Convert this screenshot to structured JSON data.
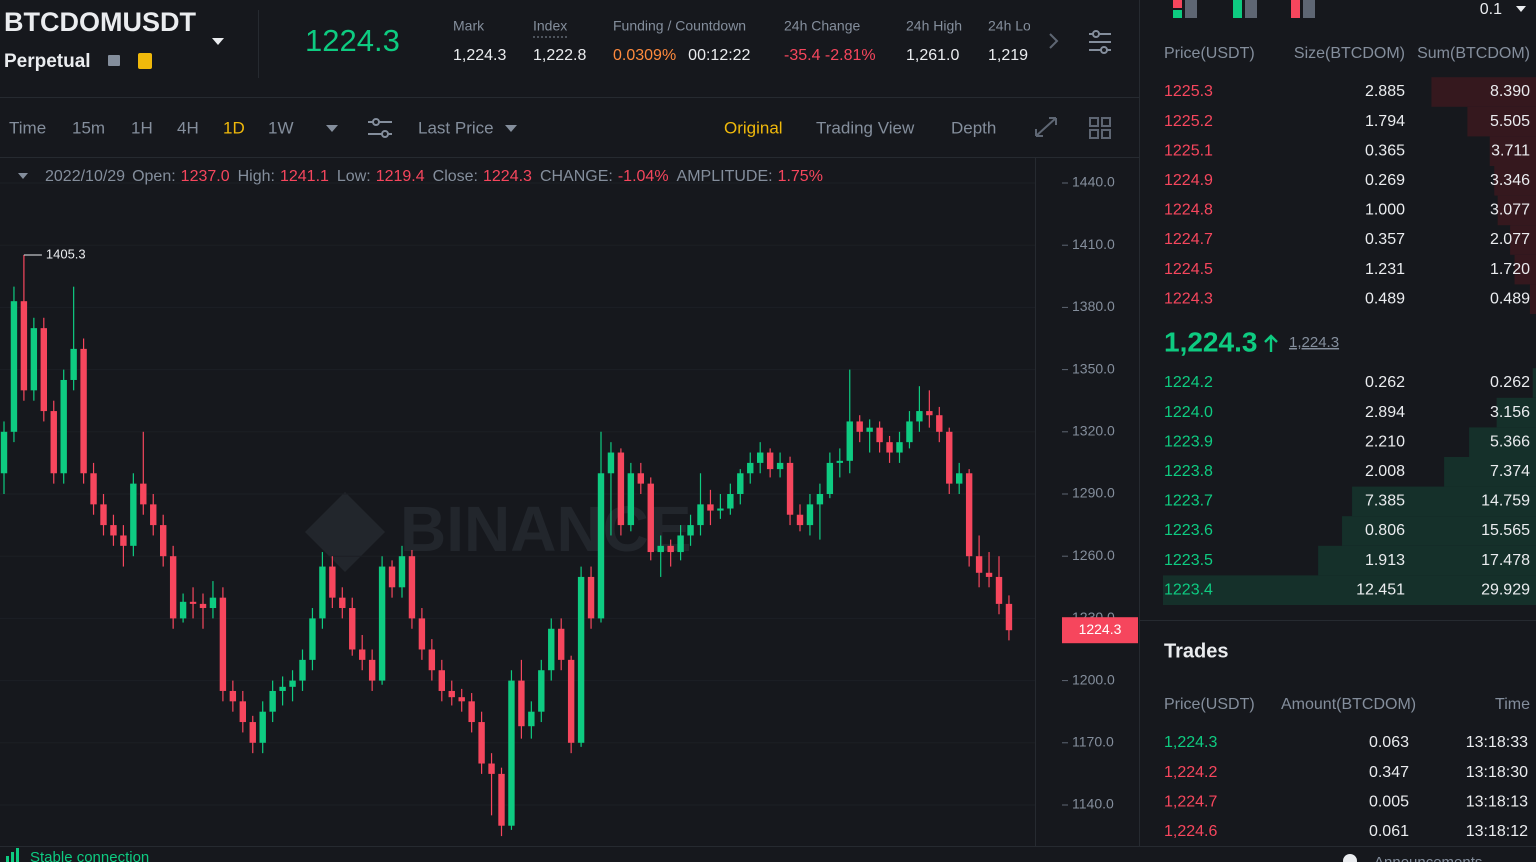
{
  "header": {
    "symbol": "BTCDOMUSDT",
    "contract": "Perpetual",
    "last_price": "1224.3",
    "stats": [
      {
        "label": "Mark",
        "value": "1,224.3"
      },
      {
        "label": "Index",
        "value": "1,222.8"
      },
      {
        "label": "Funding / Countdown",
        "value": "0.0309%",
        "value2": "00:12:22"
      },
      {
        "label": "24h Change",
        "value": "-35.4 -2.81%"
      },
      {
        "label": "24h High",
        "value": "1,261.0"
      },
      {
        "label": "24h Lo",
        "value": "1,219"
      }
    ]
  },
  "toolbar": {
    "intervals": [
      "Time",
      "15m",
      "1H",
      "4H",
      "1D",
      "1W"
    ],
    "active_interval": 4,
    "price_type": "Last Price",
    "views": [
      "Original",
      "Trading View",
      "Depth"
    ],
    "active_view": 0
  },
  "chart_data": {
    "type": "candlestick",
    "info": {
      "date": "2022/10/29",
      "fields": [
        {
          "label": "Open:",
          "value": "1237.0"
        },
        {
          "label": "High:",
          "value": "1241.1"
        },
        {
          "label": "Low:",
          "value": "1219.4"
        },
        {
          "label": "Close:",
          "value": "1224.3"
        },
        {
          "label": "CHANGE:",
          "value": "-1.04%"
        },
        {
          "label": "AMPLITUDE:",
          "value": "1.75%"
        }
      ]
    },
    "up_color": "#0ecb81",
    "down_color": "#f6465d",
    "grid": true,
    "ylim": [
      1120.7,
      1451.1
    ],
    "yticks": [
      {
        "value": 1140,
        "label": "1140.0"
      },
      {
        "value": 1170,
        "label": "1170.0"
      },
      {
        "value": 1200,
        "label": "1200.0"
      },
      {
        "value": 1230,
        "label": "1230.0"
      },
      {
        "value": 1260,
        "label": "1260.0"
      },
      {
        "value": 1290,
        "label": "1290.0"
      },
      {
        "value": 1320,
        "label": "1320.0"
      },
      {
        "value": 1350,
        "label": "1350.0"
      },
      {
        "value": 1380,
        "label": "1380.0"
      },
      {
        "value": 1410,
        "label": "1410.0"
      },
      {
        "value": 1440,
        "label": "1440.0"
      }
    ],
    "high_label": "1405.3",
    "last_price_label": "1224.3",
    "watermark": "BINANCE",
    "candles": [
      [
        1300,
        1325,
        1290,
        1320
      ],
      [
        1320,
        1390,
        1315,
        1383
      ],
      [
        1383,
        1405.3,
        1335,
        1340
      ],
      [
        1340,
        1375,
        1335,
        1370
      ],
      [
        1370,
        1375,
        1325,
        1330
      ],
      [
        1330,
        1335,
        1295,
        1300
      ],
      [
        1300,
        1350,
        1295,
        1345
      ],
      [
        1345,
        1390,
        1340,
        1360
      ],
      [
        1360,
        1365,
        1295,
        1300
      ],
      [
        1300,
        1305,
        1280,
        1285
      ],
      [
        1285,
        1290,
        1270,
        1275
      ],
      [
        1275,
        1280,
        1265,
        1270
      ],
      [
        1270,
        1275,
        1255,
        1265
      ],
      [
        1265,
        1300,
        1260,
        1295
      ],
      [
        1295,
        1320,
        1280,
        1285
      ],
      [
        1285,
        1290,
        1270,
        1275
      ],
      [
        1275,
        1280,
        1255,
        1260
      ],
      [
        1260,
        1265,
        1225,
        1230
      ],
      [
        1230,
        1242,
        1228,
        1238
      ],
      [
        1238,
        1245,
        1230,
        1237
      ],
      [
        1237,
        1242,
        1225,
        1235
      ],
      [
        1235,
        1248,
        1230,
        1240
      ],
      [
        1240,
        1245,
        1190,
        1195
      ],
      [
        1195,
        1200,
        1185,
        1190
      ],
      [
        1190,
        1195,
        1175,
        1180
      ],
      [
        1180,
        1183,
        1165,
        1170
      ],
      [
        1170,
        1190,
        1165,
        1185
      ],
      [
        1185,
        1200,
        1180,
        1195
      ],
      [
        1195,
        1202,
        1188,
        1197
      ],
      [
        1197,
        1205,
        1190,
        1200
      ],
      [
        1200,
        1215,
        1195,
        1210
      ],
      [
        1210,
        1235,
        1205,
        1230
      ],
      [
        1230,
        1262,
        1225,
        1255
      ],
      [
        1255,
        1260,
        1235,
        1240
      ],
      [
        1240,
        1245,
        1230,
        1235
      ],
      [
        1235,
        1240,
        1212,
        1215
      ],
      [
        1215,
        1222,
        1205,
        1210
      ],
      [
        1210,
        1215,
        1195,
        1200
      ],
      [
        1200,
        1260,
        1198,
        1255
      ],
      [
        1255,
        1258,
        1240,
        1245
      ],
      [
        1245,
        1265,
        1240,
        1260
      ],
      [
        1260,
        1263,
        1225,
        1230
      ],
      [
        1230,
        1235,
        1210,
        1215
      ],
      [
        1215,
        1220,
        1200,
        1205
      ],
      [
        1205,
        1210,
        1190,
        1195
      ],
      [
        1195,
        1200,
        1188,
        1192
      ],
      [
        1192,
        1196,
        1185,
        1190
      ],
      [
        1190,
        1194,
        1175,
        1180
      ],
      [
        1180,
        1185,
        1155,
        1160
      ],
      [
        1160,
        1165,
        1135,
        1155
      ],
      [
        1155,
        1158,
        1125,
        1130
      ],
      [
        1130,
        1205,
        1128,
        1200
      ],
      [
        1200,
        1210,
        1172,
        1178
      ],
      [
        1178,
        1190,
        1172,
        1185
      ],
      [
        1185,
        1210,
        1180,
        1205
      ],
      [
        1205,
        1230,
        1200,
        1225
      ],
      [
        1225,
        1230,
        1205,
        1210
      ],
      [
        1210,
        1212,
        1165,
        1170
      ],
      [
        1170,
        1255,
        1168,
        1250
      ],
      [
        1250,
        1255,
        1225,
        1230
      ],
      [
        1230,
        1320,
        1228,
        1300
      ],
      [
        1300,
        1315,
        1270,
        1310
      ],
      [
        1310,
        1312,
        1270,
        1275
      ],
      [
        1275,
        1305,
        1272,
        1300
      ],
      [
        1300,
        1305,
        1290,
        1295
      ],
      [
        1295,
        1298,
        1258,
        1262
      ],
      [
        1262,
        1270,
        1250,
        1265
      ],
      [
        1265,
        1268,
        1255,
        1262
      ],
      [
        1262,
        1275,
        1258,
        1270
      ],
      [
        1270,
        1280,
        1265,
        1275
      ],
      [
        1275,
        1300,
        1270,
        1285
      ],
      [
        1285,
        1292,
        1275,
        1282
      ],
      [
        1282,
        1290,
        1278,
        1283
      ],
      [
        1283,
        1295,
        1280,
        1290
      ],
      [
        1290,
        1302,
        1285,
        1300
      ],
      [
        1300,
        1310,
        1295,
        1305
      ],
      [
        1305,
        1315,
        1300,
        1310
      ],
      [
        1310,
        1312,
        1298,
        1302
      ],
      [
        1302,
        1310,
        1298,
        1305
      ],
      [
        1305,
        1308,
        1275,
        1280
      ],
      [
        1280,
        1285,
        1272,
        1275
      ],
      [
        1275,
        1290,
        1270,
        1285
      ],
      [
        1285,
        1295,
        1268,
        1290
      ],
      [
        1290,
        1310,
        1288,
        1305
      ],
      [
        1305,
        1312,
        1298,
        1306
      ],
      [
        1306,
        1350,
        1300,
        1325
      ],
      [
        1325,
        1328,
        1315,
        1320
      ],
      [
        1320,
        1326,
        1310,
        1322
      ],
      [
        1322,
        1325,
        1310,
        1315
      ],
      [
        1315,
        1318,
        1305,
        1310
      ],
      [
        1310,
        1320,
        1305,
        1315
      ],
      [
        1315,
        1330,
        1312,
        1325
      ],
      [
        1325,
        1342,
        1320,
        1330
      ],
      [
        1330,
        1340,
        1322,
        1328
      ],
      [
        1328,
        1332,
        1315,
        1320
      ],
      [
        1320,
        1322,
        1290,
        1295
      ],
      [
        1295,
        1305,
        1290,
        1300
      ],
      [
        1300,
        1302,
        1255,
        1260
      ],
      [
        1260,
        1270,
        1245,
        1252
      ],
      [
        1252,
        1262,
        1245,
        1250
      ],
      [
        1250,
        1260,
        1232,
        1237
      ],
      [
        1237,
        1241.1,
        1219.4,
        1224.3
      ]
    ]
  },
  "order_book": {
    "precision": "0.1",
    "columns": [
      "Price(USDT)",
      "Size(BTCDOM)",
      "Sum(BTCDOM)"
    ],
    "ask_color": "#f6465d",
    "bid_color": "#0ecb81",
    "asks": [
      [
        "1225.3",
        "2.885",
        "8.390"
      ],
      [
        "1225.2",
        "1.794",
        "5.505"
      ],
      [
        "1225.1",
        "0.365",
        "3.711"
      ],
      [
        "1224.9",
        "0.269",
        "3.346"
      ],
      [
        "1224.8",
        "1.000",
        "3.077"
      ],
      [
        "1224.7",
        "0.357",
        "2.077"
      ],
      [
        "1224.5",
        "1.231",
        "1.720"
      ],
      [
        "1224.3",
        "0.489",
        "0.489"
      ]
    ],
    "mid_price": "1,224.3",
    "mark_price": "1,224.3",
    "bids": [
      [
        "1224.2",
        "0.262",
        "0.262"
      ],
      [
        "1224.0",
        "2.894",
        "3.156"
      ],
      [
        "1223.9",
        "2.210",
        "5.366"
      ],
      [
        "1223.8",
        "2.008",
        "7.374"
      ],
      [
        "1223.7",
        "7.385",
        "14.759"
      ],
      [
        "1223.6",
        "0.806",
        "15.565"
      ],
      [
        "1223.5",
        "1.913",
        "17.478"
      ],
      [
        "1223.4",
        "12.451",
        "29.929"
      ]
    ]
  },
  "trades": {
    "title": "Trades",
    "columns": [
      "Price(USDT)",
      "Amount(BTCDOM)",
      "Time"
    ],
    "rows": [
      [
        "1,224.3",
        "0.063",
        "13:18:33"
      ],
      [
        "1,224.2",
        "0.347",
        "13:18:30"
      ],
      [
        "1,224.7",
        "0.005",
        "13:18:13"
      ],
      [
        "1,224.6",
        "0.061",
        "13:18:12"
      ]
    ],
    "row_colors": [
      "#0ecb81",
      "#f6465d",
      "#f6465d",
      "#f6465d"
    ]
  },
  "footer": {
    "status": "Stable connection",
    "announcements": "Announcements"
  }
}
